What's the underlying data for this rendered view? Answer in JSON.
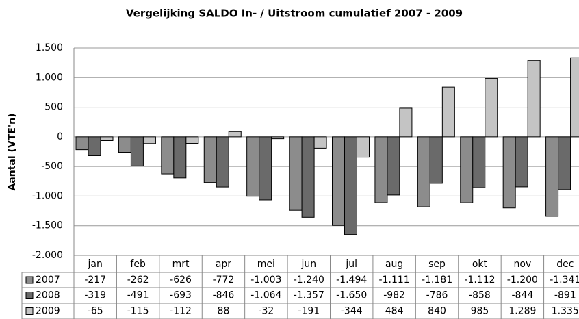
{
  "chart_data": {
    "type": "bar",
    "title": "Vergelijking SALDO In- / Uitstroom cumulatief 2007 - 2009",
    "y_label": "Aantal (VTE'n)",
    "categories": [
      "jan",
      "feb",
      "mrt",
      "apr",
      "mei",
      "jun",
      "jul",
      "aug",
      "sep",
      "okt",
      "nov",
      "dec"
    ],
    "series": [
      {
        "name": "2007",
        "color": "#8c8c8c",
        "values": [
          -217,
          -262,
          -626,
          -772,
          -1003,
          -1240,
          -1494,
          -1111,
          -1181,
          -1112,
          -1200,
          -1341
        ],
        "value_labels": [
          "-217",
          "-262",
          "-626",
          "-772",
          "-1.003",
          "-1.240",
          "-1.494",
          "-1.111",
          "-1.181",
          "-1.112",
          "-1.200",
          "-1.341"
        ]
      },
      {
        "name": "2008",
        "color": "#6a6a6a",
        "values": [
          -319,
          -491,
          -693,
          -846,
          -1064,
          -1357,
          -1650,
          -982,
          -786,
          -858,
          -844,
          -891
        ],
        "value_labels": [
          "-319",
          "-491",
          "-693",
          "-846",
          "-1.064",
          "-1.357",
          "-1.650",
          "-982",
          "-786",
          "-858",
          "-844",
          "-891"
        ]
      },
      {
        "name": "2009",
        "color": "#c4c4c4",
        "values": [
          -65,
          -115,
          -112,
          88,
          -32,
          -191,
          -344,
          484,
          840,
          985,
          1289,
          1335
        ],
        "value_labels": [
          "-65",
          "-115",
          "-112",
          "88",
          "-32",
          "-191",
          "-344",
          "484",
          "840",
          "985",
          "1.289",
          "1.335"
        ]
      }
    ],
    "ylim": [
      -2000,
      1500
    ],
    "yticks": [
      {
        "value": -2000,
        "label": "-2.000"
      },
      {
        "value": -1500,
        "label": "-1.500"
      },
      {
        "value": -1000,
        "label": "-1.000"
      },
      -500,
      0,
      500,
      {
        "value": 1000,
        "label": "1.000"
      },
      {
        "value": 1500,
        "label": "1.500"
      }
    ],
    "grid": true
  }
}
